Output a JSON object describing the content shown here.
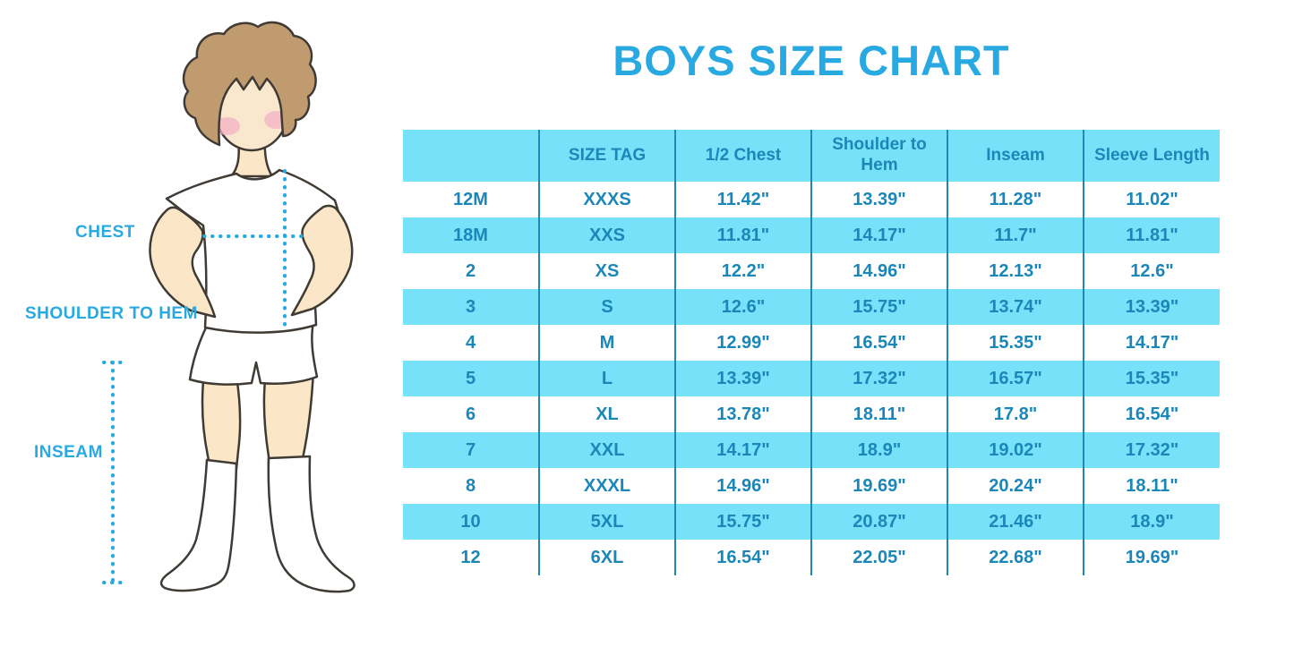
{
  "title": "BOYS SIZE CHART",
  "figure": {
    "chest_label": "CHEST",
    "shoulder_to_hem_label": "SHOULDER TO HEM",
    "inseam_label": "INSEAM"
  },
  "colors": {
    "title": "#29A9E1",
    "measure_label": "#29A9E1",
    "measure_line": "#29A9E1",
    "table_text": "#1B87B9",
    "row_band": "#78E1FA",
    "divider": "#1E88BA",
    "skin": "#FBE7C7",
    "hair": "#C19B70",
    "blush": "#F2B2C4"
  },
  "chart_data": {
    "type": "table",
    "title": "BOYS SIZE CHART",
    "columns": [
      "",
      "SIZE TAG",
      "1/2 Chest",
      "Shoulder to Hem",
      "Inseam",
      "Sleeve Length"
    ],
    "rows": [
      [
        "12M",
        "XXXS",
        "11.42\"",
        "13.39\"",
        "11.28\"",
        "11.02\""
      ],
      [
        "18M",
        "XXS",
        "11.81\"",
        "14.17\"",
        "11.7\"",
        "11.81\""
      ],
      [
        "2",
        "XS",
        "12.2\"",
        "14.96\"",
        "12.13\"",
        "12.6\""
      ],
      [
        "3",
        "S",
        "12.6\"",
        "15.75\"",
        "13.74\"",
        "13.39\""
      ],
      [
        "4",
        "M",
        "12.99\"",
        "16.54\"",
        "15.35\"",
        "14.17\""
      ],
      [
        "5",
        "L",
        "13.39\"",
        "17.32\"",
        "16.57\"",
        "15.35\""
      ],
      [
        "6",
        "XL",
        "13.78\"",
        "18.11\"",
        "17.8\"",
        "16.54\""
      ],
      [
        "7",
        "XXL",
        "14.17\"",
        "18.9\"",
        "19.02\"",
        "17.32\""
      ],
      [
        "8",
        "XXXL",
        "14.96\"",
        "19.69\"",
        "20.24\"",
        "18.11\""
      ],
      [
        "10",
        "5XL",
        "15.75\"",
        "20.87\"",
        "21.46\"",
        "18.9\""
      ],
      [
        "12",
        "6XL",
        "16.54\"",
        "22.05\"",
        "22.68\"",
        "19.69\""
      ]
    ],
    "banded_row_sizes": [
      "18M",
      "3",
      "5",
      "7",
      "10"
    ],
    "units": "inches"
  }
}
